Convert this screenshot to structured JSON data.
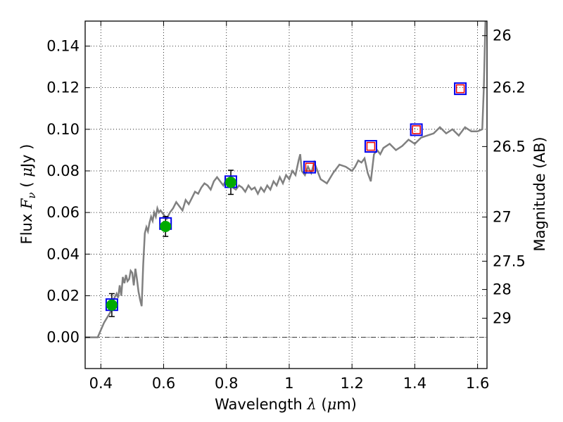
{
  "chart_data": {
    "type": "scatter",
    "xlabel_pre": "Wavelength ",
    "xlabel_var": "λ",
    "xlabel_post": " (",
    "xlabel_unit_var": "μ",
    "xlabel_unit_end": "m)",
    "ylabel_pre": "Flux ",
    "ylabel_var": "F",
    "ylabel_sub": "ν",
    "ylabel_open": " ( ",
    "ylabel_unit_var": "μ",
    "ylabel_unit_end": "Jy )",
    "y2label": "Magnitude (AB)",
    "xlim": [
      0.35,
      1.63
    ],
    "ylim": [
      -0.015,
      0.152
    ],
    "grid": true,
    "grid_style": "dotted",
    "x_ticks": [
      0.4,
      0.6,
      0.8,
      1.0,
      1.2,
      1.4,
      1.6
    ],
    "x_tick_labels": [
      "0.4",
      "0.6",
      "0.8",
      "1",
      "1.2",
      "1.4",
      "1.6"
    ],
    "y_ticks": [
      0.0,
      0.02,
      0.04,
      0.06,
      0.08,
      0.1,
      0.12,
      0.14
    ],
    "y_tick_labels": [
      "0.00",
      "0.02",
      "0.04",
      "0.06",
      "0.08",
      "0.10",
      "0.12",
      "0.14"
    ],
    "right_ticks": [
      {
        "label": "26",
        "flux": 0.145
      },
      {
        "label": "26.2",
        "flux": 0.12
      },
      {
        "label": "26.5",
        "flux": 0.0917
      },
      {
        "label": "27",
        "flux": 0.0578
      },
      {
        "label": "27.5",
        "flux": 0.0366
      },
      {
        "label": "28",
        "flux": 0.023
      },
      {
        "label": "29",
        "flux": 0.0092
      }
    ],
    "observed_points": {
      "x": [
        0.435,
        0.606,
        0.814
      ],
      "y": [
        0.0155,
        0.0533,
        0.0745
      ],
      "yerr": [
        0.0055,
        0.0048,
        0.0058
      ],
      "color": "#00aa00"
    },
    "model_points": {
      "x": [
        0.435,
        0.606,
        0.814,
        1.065,
        1.26,
        1.405,
        1.545
      ],
      "y": [
        0.0157,
        0.0547,
        0.0748,
        0.0818,
        0.0918,
        0.0998,
        0.1195
      ],
      "color": "#0000ee"
    },
    "upper_points": {
      "x": [
        1.065,
        1.26,
        1.405,
        1.545
      ],
      "y": [
        0.0818,
        0.0918,
        0.0998,
        0.1195
      ],
      "color": "#ee0000"
    },
    "spectrum": {
      "color": "#808080",
      "x": [
        0.35,
        0.39,
        0.41,
        0.43,
        0.44,
        0.45,
        0.455,
        0.46,
        0.465,
        0.47,
        0.475,
        0.48,
        0.485,
        0.49,
        0.495,
        0.5,
        0.505,
        0.51,
        0.515,
        0.52,
        0.525,
        0.53,
        0.535,
        0.54,
        0.545,
        0.55,
        0.555,
        0.56,
        0.565,
        0.57,
        0.575,
        0.58,
        0.585,
        0.59,
        0.6,
        0.61,
        0.62,
        0.63,
        0.64,
        0.65,
        0.66,
        0.67,
        0.68,
        0.69,
        0.7,
        0.71,
        0.72,
        0.73,
        0.74,
        0.75,
        0.76,
        0.77,
        0.78,
        0.79,
        0.8,
        0.81,
        0.82,
        0.83,
        0.84,
        0.85,
        0.86,
        0.87,
        0.88,
        0.89,
        0.9,
        0.91,
        0.92,
        0.93,
        0.94,
        0.95,
        0.96,
        0.97,
        0.98,
        0.99,
        1.0,
        1.01,
        1.02,
        1.03,
        1.035,
        1.04,
        1.05,
        1.06,
        1.07,
        1.08,
        1.09,
        1.1,
        1.12,
        1.14,
        1.16,
        1.18,
        1.2,
        1.21,
        1.22,
        1.23,
        1.24,
        1.25,
        1.26,
        1.27,
        1.28,
        1.29,
        1.3,
        1.32,
        1.34,
        1.36,
        1.38,
        1.4,
        1.42,
        1.44,
        1.46,
        1.48,
        1.5,
        1.52,
        1.54,
        1.56,
        1.58,
        1.6,
        1.615,
        1.62,
        1.625
      ],
      "y": [
        0.0,
        0.0,
        0.007,
        0.012,
        0.018,
        0.021,
        0.019,
        0.025,
        0.02,
        0.029,
        0.026,
        0.03,
        0.027,
        0.028,
        0.032,
        0.031,
        0.025,
        0.033,
        0.028,
        0.022,
        0.018,
        0.015,
        0.035,
        0.05,
        0.053,
        0.051,
        0.055,
        0.058,
        0.056,
        0.06,
        0.058,
        0.062,
        0.06,
        0.061,
        0.059,
        0.057,
        0.06,
        0.062,
        0.065,
        0.063,
        0.061,
        0.066,
        0.064,
        0.067,
        0.07,
        0.069,
        0.072,
        0.074,
        0.073,
        0.071,
        0.075,
        0.077,
        0.075,
        0.073,
        0.076,
        0.074,
        0.072,
        0.071,
        0.073,
        0.072,
        0.07,
        0.073,
        0.071,
        0.072,
        0.069,
        0.072,
        0.07,
        0.073,
        0.071,
        0.075,
        0.073,
        0.077,
        0.074,
        0.078,
        0.076,
        0.08,
        0.078,
        0.085,
        0.088,
        0.08,
        0.078,
        0.082,
        0.079,
        0.084,
        0.08,
        0.076,
        0.074,
        0.079,
        0.083,
        0.082,
        0.08,
        0.082,
        0.085,
        0.084,
        0.086,
        0.079,
        0.075,
        0.088,
        0.09,
        0.088,
        0.091,
        0.093,
        0.09,
        0.092,
        0.095,
        0.093,
        0.096,
        0.097,
        0.098,
        0.101,
        0.098,
        0.1,
        0.097,
        0.101,
        0.099,
        0.099,
        0.1,
        0.12,
        0.152
      ]
    },
    "zero_line": {
      "y": 0.0,
      "style": "dash-dot"
    }
  }
}
